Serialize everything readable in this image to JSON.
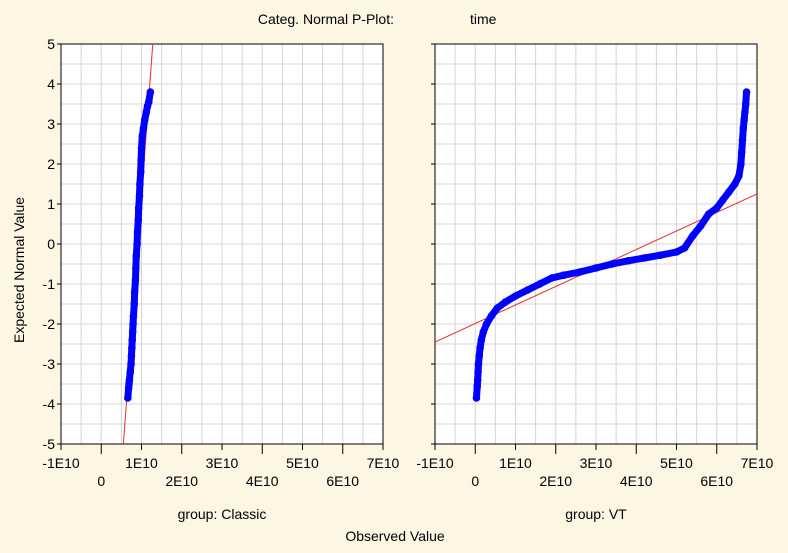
{
  "chart_data": {
    "type": "scatter",
    "title": "Categ. Normal P-Plot:",
    "title_variable": "time",
    "xlabel": "Observed Value",
    "ylabel": "Expected Normal Value",
    "ylim": [
      -5,
      5
    ],
    "xlim": [
      -10000000000.0,
      70000000000.0
    ],
    "y_ticks": [
      "5",
      "4",
      "3",
      "2",
      "1",
      "0",
      "-1",
      "-2",
      "-3",
      "-4",
      "-5"
    ],
    "x_ticks_upper": [
      "-1E10",
      "1E10",
      "3E10",
      "5E10",
      "7E10"
    ],
    "x_ticks_lower": [
      "0",
      "2E10",
      "4E10",
      "6E10"
    ],
    "grid": true,
    "colors": {
      "points": "#0000ff",
      "fit_line": "#e03030",
      "background": "#fdf6e3",
      "plot_bg": "#ffffff",
      "grid": "#d4d4d4"
    },
    "panels": [
      {
        "label": "group: Classic",
        "fit_line": [
          [
            5500000000.0,
            -5
          ],
          [
            12800000000.0,
            5
          ]
        ],
        "points": [
          [
            6600000000.0,
            -3.85
          ],
          [
            6800000000.0,
            -3.6
          ],
          [
            6900000000.0,
            -3.5
          ],
          [
            7000000000.0,
            -3.4
          ],
          [
            7200000000.0,
            -3.2
          ],
          [
            7400000000.0,
            -3.0
          ],
          [
            7500000000.0,
            -2.8
          ],
          [
            7600000000.0,
            -2.6
          ],
          [
            7700000000.0,
            -2.4
          ],
          [
            7800000000.0,
            -2.2
          ],
          [
            7900000000.0,
            -2.0
          ],
          [
            8000000000.0,
            -1.8
          ],
          [
            8200000000.0,
            -1.5
          ],
          [
            8300000000.0,
            -1.2
          ],
          [
            8500000000.0,
            -0.9
          ],
          [
            8600000000.0,
            -0.6
          ],
          [
            8700000000.0,
            -0.3
          ],
          [
            8900000000.0,
            0
          ],
          [
            9000000000.0,
            0.3
          ],
          [
            9200000000.0,
            0.6
          ],
          [
            9300000000.0,
            0.9
          ],
          [
            9500000000.0,
            1.2
          ],
          [
            9600000000.0,
            1.5
          ],
          [
            9800000000.0,
            1.8
          ],
          [
            9900000000.0,
            2.1
          ],
          [
            10000000000.0,
            2.4
          ],
          [
            10200000000.0,
            2.7
          ],
          [
            10500000000.0,
            2.9
          ],
          [
            10800000000.0,
            3.1
          ],
          [
            11200000000.0,
            3.3
          ],
          [
            11500000000.0,
            3.45
          ],
          [
            11800000000.0,
            3.55
          ],
          [
            12200000000.0,
            3.8
          ]
        ]
      },
      {
        "label": "group: VT",
        "fit_line": [
          [
            -10000000000.0,
            -2.45
          ],
          [
            70000000000.0,
            1.25
          ]
        ],
        "points": [
          [
            300000000.0,
            -3.85
          ],
          [
            500000000.0,
            -3.55
          ],
          [
            600000000.0,
            -3.4
          ],
          [
            700000000.0,
            -3.2
          ],
          [
            800000000.0,
            -3.0
          ],
          [
            1000000000.0,
            -2.8
          ],
          [
            1200000000.0,
            -2.6
          ],
          [
            1500000000.0,
            -2.4
          ],
          [
            2000000000.0,
            -2.2
          ],
          [
            2800000000.0,
            -2.0
          ],
          [
            4000000000.0,
            -1.8
          ],
          [
            5500000000.0,
            -1.6
          ],
          [
            7500000000.0,
            -1.45
          ],
          [
            10000000000.0,
            -1.3
          ],
          [
            13000000000.0,
            -1.15
          ],
          [
            16000000000.0,
            -1.0
          ],
          [
            19000000000.0,
            -0.85
          ],
          [
            22000000000.0,
            -0.78
          ],
          [
            26000000000.0,
            -0.7
          ],
          [
            30000000000.0,
            -0.6
          ],
          [
            34000000000.0,
            -0.5
          ],
          [
            38000000000.0,
            -0.42
          ],
          [
            42000000000.0,
            -0.35
          ],
          [
            46000000000.0,
            -0.28
          ],
          [
            50000000000.0,
            -0.2
          ],
          [
            52000000000.0,
            -0.1
          ],
          [
            54000000000.0,
            0.2
          ],
          [
            56000000000.0,
            0.45
          ],
          [
            58000000000.0,
            0.75
          ],
          [
            60000000000.0,
            0.9
          ],
          [
            61500000000.0,
            1.1
          ],
          [
            63000000000.0,
            1.3
          ],
          [
            64500000000.0,
            1.5
          ],
          [
            65500000000.0,
            1.7
          ],
          [
            66000000000.0,
            2.0
          ],
          [
            66200000000.0,
            2.3
          ],
          [
            66400000000.0,
            2.6
          ],
          [
            66600000000.0,
            2.9
          ],
          [
            66800000000.0,
            3.1
          ],
          [
            67000000000.0,
            3.3
          ],
          [
            67200000000.0,
            3.5
          ],
          [
            67400000000.0,
            3.8
          ]
        ]
      }
    ]
  }
}
